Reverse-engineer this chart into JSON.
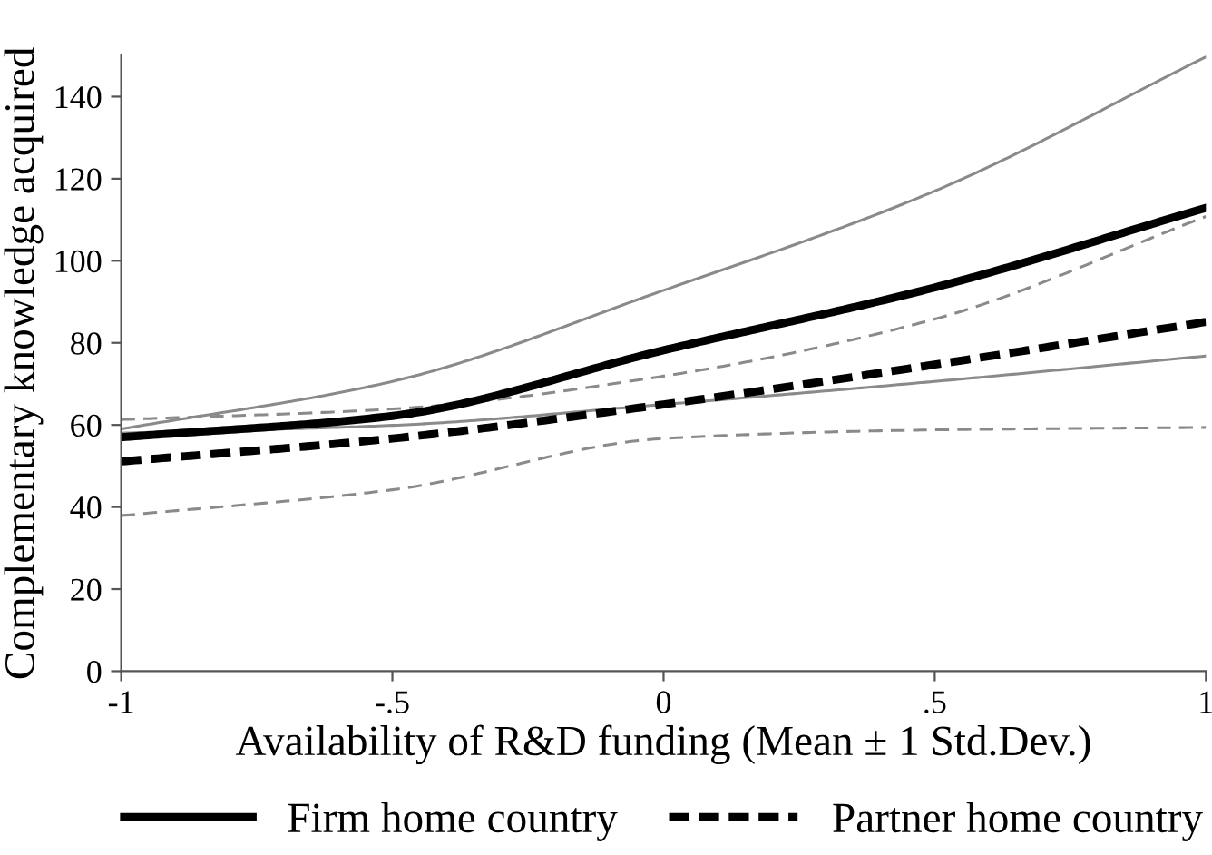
{
  "chart_data": {
    "type": "line",
    "xlabel": "Availability of R&D funding (Mean ± 1 Std.Dev.)",
    "ylabel": "Complementary knowledge acquired",
    "x": [
      -1,
      -0.5,
      0,
      0.5,
      1
    ],
    "series": [
      {
        "color": "#8a8a8a",
        "line_style": "solid",
        "values": [
          59,
          70.6,
          92.8,
          117,
          149.7
        ]
      },
      {
        "color": "#8a8a8a",
        "line_style": "solid",
        "values": [
          58,
          59.9,
          65,
          70.6,
          76.8
        ]
      },
      {
        "color": "#8a8a8a",
        "line_style": "dashed",
        "values": [
          61.3,
          63.9,
          71.9,
          85.8,
          110.8
        ]
      },
      {
        "color": "#8a8a8a",
        "line_style": "dashed",
        "values": [
          37.9,
          44.2,
          56.7,
          58.8,
          59.4
        ]
      },
      {
        "name": "Firm home country",
        "color": "#000000",
        "line_style": "solid",
        "values": [
          57,
          62.2,
          78.2,
          93.5,
          112.9
        ]
      },
      {
        "name": "Partner home country",
        "color": "#000000",
        "line_style": "dashed",
        "values": [
          51.1,
          56.7,
          65,
          74.7,
          85.1
        ]
      }
    ],
    "xlim": [
      -1,
      1
    ],
    "ylim": [
      0,
      150
    ],
    "xticks": [
      -1,
      {
        "value": -0.5,
        "label": "-.5"
      },
      0,
      {
        "value": 0.5,
        "label": ".5"
      },
      1
    ],
    "yticks": [
      0,
      20,
      40,
      60,
      80,
      100,
      120,
      140
    ],
    "grid": false,
    "legend": "bottom",
    "marker": "none"
  }
}
